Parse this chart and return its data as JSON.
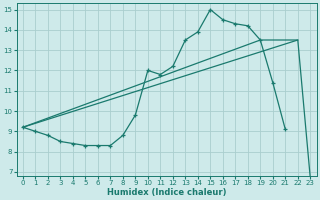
{
  "xlabel": "Humidex (Indice chaleur)",
  "bg_color": "#ceeaea",
  "grid_color": "#aacece",
  "line_color": "#1a7a6e",
  "series1_x": [
    0,
    1,
    2,
    3,
    4,
    5,
    6,
    7,
    8,
    9,
    10,
    11,
    12,
    13,
    14,
    15,
    16,
    17,
    18,
    19,
    20,
    21
  ],
  "series1_y": [
    9.2,
    9.0,
    8.8,
    8.5,
    8.4,
    8.3,
    8.3,
    8.3,
    8.8,
    9.8,
    12.0,
    11.8,
    12.2,
    13.5,
    13.9,
    15.0,
    14.5,
    14.3,
    14.2,
    13.5,
    11.4,
    9.1
  ],
  "series2_x": [
    0,
    19,
    22
  ],
  "series2_y": [
    9.2,
    13.5,
    13.5
  ],
  "series3_x": [
    0,
    22,
    23
  ],
  "series3_y": [
    9.2,
    13.5,
    6.7
  ],
  "xlim": [
    -0.5,
    23.5
  ],
  "ylim": [
    6.8,
    15.3
  ],
  "yticks": [
    7,
    8,
    9,
    10,
    11,
    12,
    13,
    14,
    15
  ],
  "xticks": [
    0,
    1,
    2,
    3,
    4,
    5,
    6,
    7,
    8,
    9,
    10,
    11,
    12,
    13,
    14,
    15,
    16,
    17,
    18,
    19,
    20,
    21,
    22,
    23
  ]
}
